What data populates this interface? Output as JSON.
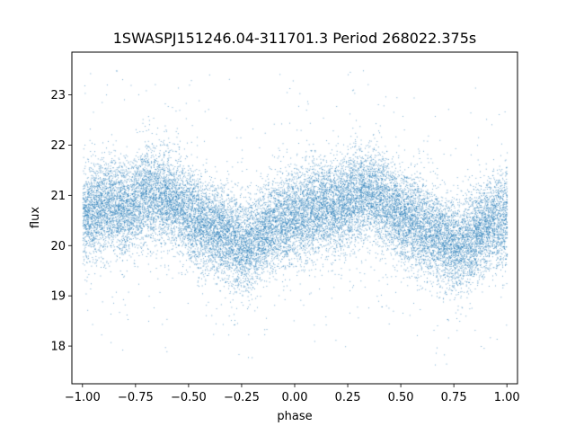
{
  "chart_data": {
    "type": "scatter",
    "title": "1SWASPJ151246.04-311701.3 Period 268022.375s",
    "xlabel": "phase",
    "ylabel": "flux",
    "xlim": [
      -1.05,
      1.05
    ],
    "ylim": [
      17.25,
      23.85
    ],
    "x_ticks": [
      -1.0,
      -0.75,
      -0.5,
      -0.25,
      0.0,
      0.25,
      0.5,
      0.75,
      1.0
    ],
    "x_tick_labels": [
      "−1.00",
      "−0.75",
      "−0.50",
      "−0.25",
      "0.00",
      "0.25",
      "0.50",
      "0.75",
      "1.00"
    ],
    "y_ticks": [
      18,
      19,
      20,
      21,
      22,
      23
    ],
    "y_tick_labels": [
      "18",
      "19",
      "20",
      "21",
      "22",
      "23"
    ],
    "grid": false,
    "point_color": "#1f77b4",
    "series": [
      {
        "x_range": [
          -1.0,
          1.0
        ],
        "period_in_phase": 1.0,
        "mean_curve": {
          "phase": [
            0.0,
            0.1,
            0.2,
            0.3,
            0.4,
            0.5,
            0.6,
            0.7,
            0.75,
            0.8,
            0.9,
            1.0
          ],
          "flux": [
            20.55,
            20.8,
            20.75,
            21.05,
            20.95,
            20.6,
            20.35,
            20.15,
            19.95,
            20.05,
            20.4,
            20.55
          ]
        },
        "scatter_sigma": 0.45,
        "approx_points": 22000,
        "min_flux": 17.6,
        "max_flux": 23.5
      }
    ]
  }
}
